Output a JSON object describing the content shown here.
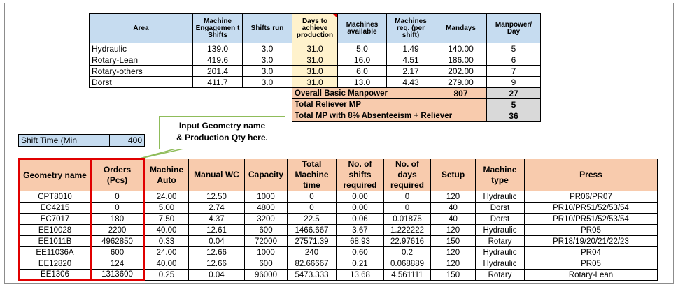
{
  "summary": {
    "headers": [
      "Area",
      "Machine Engagemen t Shifts",
      "Shifts run",
      "Days to achieve production",
      "Machines available",
      "Machines req. (per shift)",
      "Mandays",
      "Manpower/ Day"
    ],
    "rows": [
      [
        "Hydraulic",
        "139.0",
        "3.0",
        "31.0",
        "5.0",
        "1.49",
        "140.00",
        "5"
      ],
      [
        "Rotary-Lean",
        "419.6",
        "3.0",
        "31.0",
        "16.0",
        "4.51",
        "186.00",
        "6"
      ],
      [
        "Rotary-others",
        "201.4",
        "3.0",
        "31.0",
        "6.0",
        "2.17",
        "202.00",
        "7"
      ],
      [
        "Dorst",
        "411.7",
        "3.0",
        "31.0",
        "13.0",
        "4.43",
        "279.00",
        "9"
      ]
    ],
    "totals": [
      {
        "label": "Overall Basic Manpower",
        "mandays": "807",
        "manpower": "27"
      },
      {
        "label": "Total Reliever MP",
        "mandays": "",
        "manpower": "5"
      },
      {
        "label": "Total MP with 8% Absenteeism + Reliever",
        "mandays": "",
        "manpower": "36"
      }
    ]
  },
  "shift_time": {
    "label": "Shift Time (Min",
    "value": "400"
  },
  "callout": {
    "line1": "Input Geometry name",
    "line2": "& Production Qty here."
  },
  "main": {
    "headers": [
      "Geometry name",
      "Orders (Pcs)",
      "Machine Auto",
      "Manual WC",
      "Capacity",
      "Total Machine time",
      "No. of shifts required",
      "No. of days required",
      "Setup",
      "Machine type",
      "Press"
    ],
    "rows": [
      [
        "CPT8010",
        "0",
        "24.00",
        "12.50",
        "1000",
        "0",
        "0.00",
        "0",
        "120",
        "Hydraulic",
        "PR06/PR07"
      ],
      [
        "EC4215",
        "0",
        "5.00",
        "2.74",
        "4800",
        "0",
        "0.00",
        "0",
        "40",
        "Dorst",
        "PR10/PR51/52/53/54"
      ],
      [
        "EC7017",
        "180",
        "7.50",
        "4.37",
        "3200",
        "22.5",
        "0.06",
        "0.01875",
        "40",
        "Dorst",
        "PR10/PR51/52/53/54"
      ],
      [
        "EE10028",
        "2200",
        "40.00",
        "12.61",
        "600",
        "1466.667",
        "3.67",
        "1.222222",
        "120",
        "Hydraulic",
        "PR05"
      ],
      [
        "EE1011B",
        "4962850",
        "0.33",
        "0.04",
        "72000",
        "27571.39",
        "68.93",
        "22.97616",
        "150",
        "Rotary",
        "PR18/19/20/21/22/23"
      ],
      [
        "EE11036A",
        "600",
        "24.00",
        "12.66",
        "1000",
        "240",
        "0.60",
        "0.2",
        "120",
        "Hydraulic",
        "PR04"
      ],
      [
        "EE12820",
        "124",
        "40.00",
        "12.66",
        "600",
        "82.66667",
        "0.21",
        "0.068889",
        "120",
        "Hydraulic",
        "PR05"
      ],
      [
        "EE1306",
        "1313600",
        "0.25",
        "0.04",
        "96000",
        "5473.333",
        "13.68",
        "4.561111",
        "150",
        "Rotary",
        "Rotary-Lean"
      ]
    ]
  },
  "colors": {
    "blue_header": "#c6dcf0",
    "salmon": "#f8cbad",
    "yellow": "#fff2cc",
    "grey": "#d9d9d9",
    "highlight_border": "#e00000",
    "callout_border": "#8fbc5a"
  }
}
